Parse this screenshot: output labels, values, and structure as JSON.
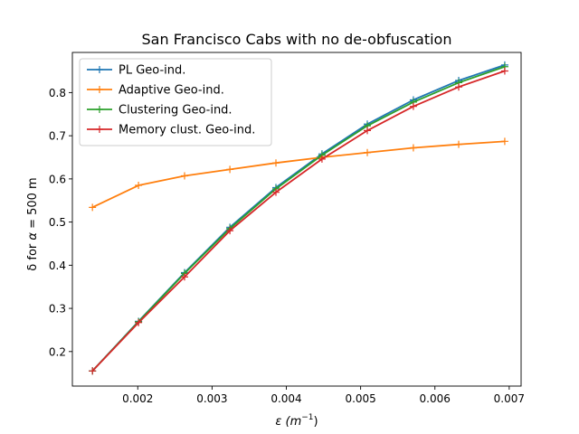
{
  "chart_data": {
    "type": "line",
    "title": "San Francisco Cabs with no de-obfuscation",
    "xlabel": {
      "pre": "ε (m",
      "sup": "−1",
      "post": ")"
    },
    "ylabel": {
      "pre": "δ for ",
      "alpha": "α",
      "post": " = 500 m"
    },
    "xlim": [
      0.00112,
      0.00716
    ],
    "ylim": [
      0.12,
      0.893
    ],
    "x_ticks": [
      0.002,
      0.003,
      0.004,
      0.005,
      0.006,
      0.007
    ],
    "x_tick_labels": [
      "0.002",
      "0.003",
      "0.004",
      "0.005",
      "0.006",
      "0.007"
    ],
    "y_ticks": [
      0.2,
      0.3,
      0.4,
      0.5,
      0.6,
      0.7,
      0.8
    ],
    "y_tick_labels": [
      "0.2",
      "0.3",
      "0.4",
      "0.5",
      "0.6",
      "0.7",
      "0.8"
    ],
    "grid": false,
    "legend_position": "top-left",
    "x": [
      0.00139,
      0.00201,
      0.00263,
      0.00324,
      0.00386,
      0.00448,
      0.00509,
      0.00571,
      0.00632,
      0.00694
    ],
    "series": [
      {
        "name": "PL Geo-ind.",
        "color": "#1f77b4",
        "values": [
          0.155,
          0.27,
          0.383,
          0.488,
          0.58,
          0.658,
          0.727,
          0.783,
          0.828,
          0.864
        ]
      },
      {
        "name": "Adaptive Geo-ind.",
        "color": "#ff7f0e",
        "values": [
          0.534,
          0.585,
          0.607,
          0.622,
          0.637,
          0.65,
          0.661,
          0.672,
          0.68,
          0.687
        ]
      },
      {
        "name": "Clustering Geo-ind.",
        "color": "#2ca02c",
        "values": [
          0.155,
          0.269,
          0.381,
          0.485,
          0.577,
          0.655,
          0.723,
          0.778,
          0.823,
          0.86
        ]
      },
      {
        "name": "Memory clust. Geo-ind.",
        "color": "#d62728",
        "values": [
          0.155,
          0.267,
          0.373,
          0.48,
          0.569,
          0.646,
          0.712,
          0.768,
          0.813,
          0.85
        ]
      }
    ]
  }
}
